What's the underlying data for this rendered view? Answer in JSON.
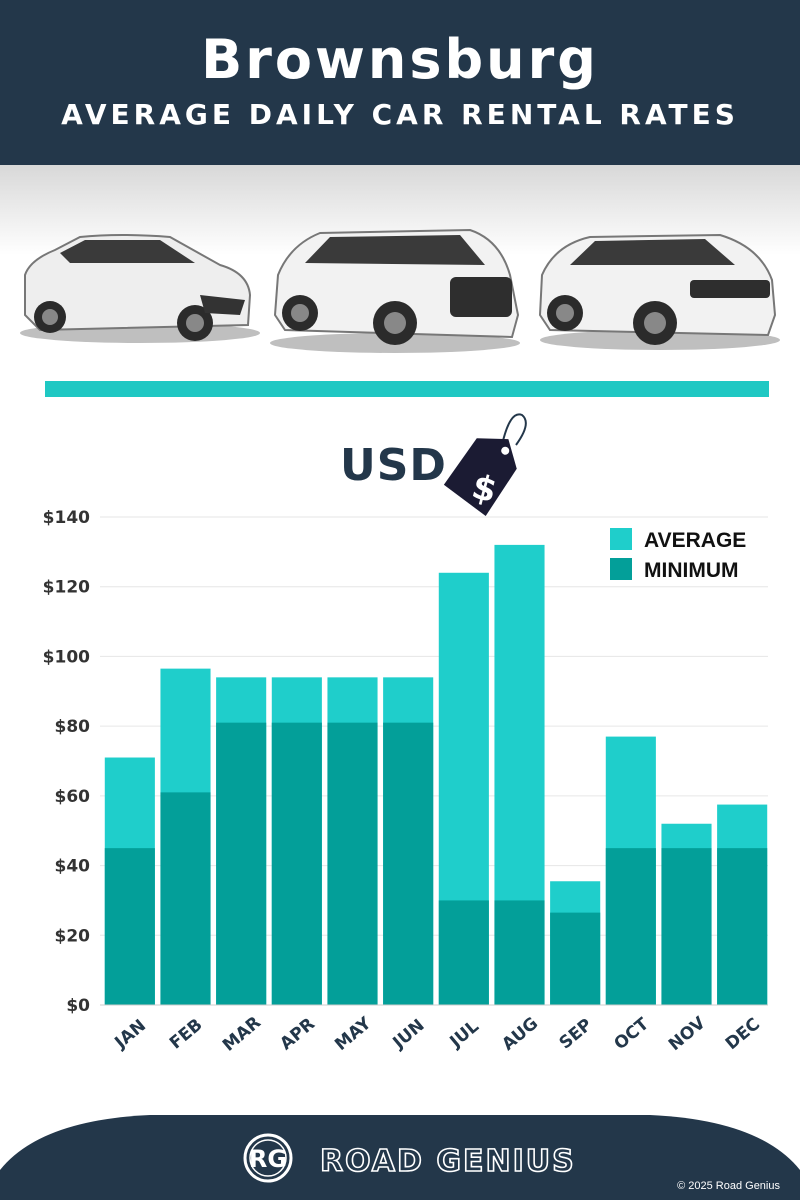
{
  "header": {
    "title": "Brownsburg",
    "subtitle": "AVERAGE DAILY CAR RENTAL RATES"
  },
  "currency_label": "USD",
  "tag_symbol": "$",
  "colors": {
    "header_bg": "#23374a",
    "accent": "#1fc8c3",
    "average": "#1fcecb",
    "minimum": "#039f99",
    "axis_text": "#333333",
    "month_text": "#23374a"
  },
  "chart_data": {
    "type": "bar",
    "stacked": "overlay",
    "categories": [
      "JAN",
      "FEB",
      "MAR",
      "APR",
      "MAY",
      "JUN",
      "JUL",
      "AUG",
      "SEP",
      "OCT",
      "NOV",
      "DEC"
    ],
    "series": [
      {
        "name": "AVERAGE",
        "values": [
          71,
          96.5,
          94,
          94,
          94,
          94,
          124,
          132,
          35.5,
          77,
          52,
          57.5
        ]
      },
      {
        "name": "MINIMUM",
        "values": [
          45,
          61,
          81,
          81,
          81,
          81,
          30,
          30,
          26.5,
          45,
          45,
          45
        ]
      }
    ],
    "yticks": [
      "$0",
      "$20",
      "$40",
      "$60",
      "$80",
      "$100",
      "$120",
      "$140"
    ],
    "ylim": [
      0,
      140
    ],
    "grid": true,
    "legend_position": "top-right"
  },
  "footer": {
    "logo_initials": "RG",
    "brand": "ROAD GENIUS",
    "copyright": "© 2025 Road Genius"
  }
}
